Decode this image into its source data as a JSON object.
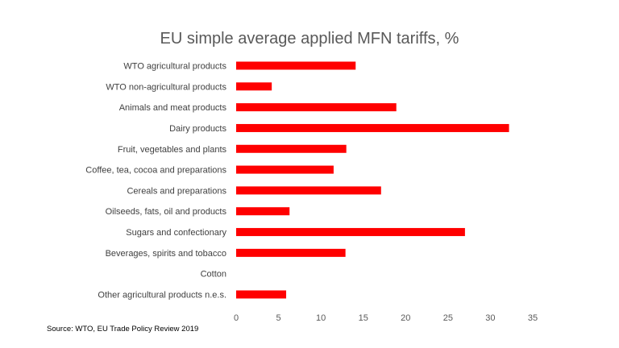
{
  "chart_data": {
    "type": "bar",
    "orientation": "horizontal",
    "title": "EU simple average applied MFN tariffs, %",
    "categories": [
      "WTO agricultural products",
      "WTO non-agricultural products",
      "Animals and meat products",
      "Dairy products",
      "Fruit, vegetables and plants",
      "Coffee, tea, cocoa and preparations",
      "Cereals and preparations",
      "Oilseeds, fats, oil and products",
      "Sugars and confectionary",
      "Beverages, spirits and tobacco",
      "Cotton",
      "Other agricultural products n.e.s."
    ],
    "values": [
      14.1,
      4.2,
      18.9,
      32.2,
      13.0,
      11.5,
      17.1,
      6.3,
      27.0,
      12.9,
      0.0,
      5.9
    ],
    "xlim": [
      0,
      35
    ],
    "xticks": [
      0,
      5,
      10,
      15,
      20,
      25,
      30,
      35
    ],
    "xlabel": "",
    "ylabel": "",
    "grid": false,
    "legend": "none",
    "bar_color": "#FF0000",
    "source": "Source:  WTO, EU Trade Policy Review 2019"
  }
}
